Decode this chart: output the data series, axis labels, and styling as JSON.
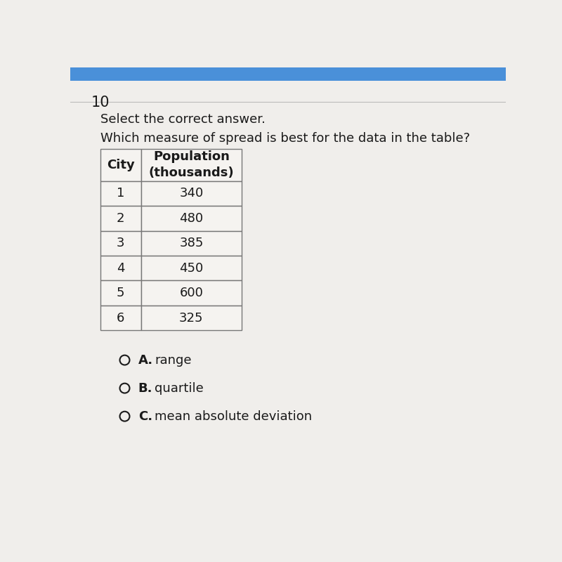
{
  "question_number": "10",
  "instruction": "Select the correct answer.",
  "question": "Which measure of spread is best for the data in the table?",
  "table_header": [
    "City",
    "Population\n(thousands)"
  ],
  "table_rows": [
    [
      "1",
      "340"
    ],
    [
      "2",
      "480"
    ],
    [
      "3",
      "385"
    ],
    [
      "4",
      "450"
    ],
    [
      "5",
      "600"
    ],
    [
      "6",
      "325"
    ]
  ],
  "options": [
    {
      "label": "A.",
      "text": "range"
    },
    {
      "label": "B.",
      "text": "quartile"
    },
    {
      "label": "C.",
      "text": "mean absolute deviation"
    }
  ],
  "bg_color": "#e8e8e8",
  "top_bar_color": "#4a90d9",
  "page_color": "#f0eeeb",
  "white": "#f5f3f0",
  "text_color": "#1a1a1a",
  "table_border_color": "#777777",
  "line_color": "#cccccc"
}
